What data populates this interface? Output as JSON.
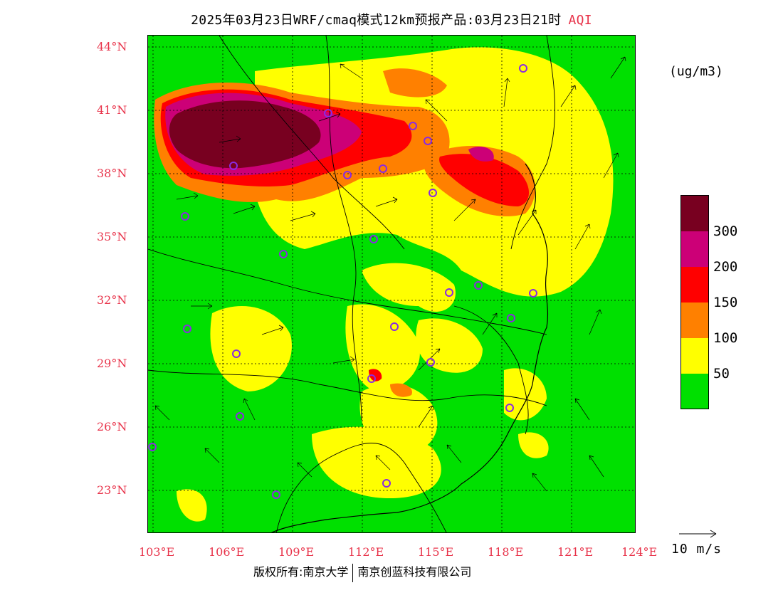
{
  "title": {
    "main": "2025年03月23日WRF/cmaq模式12km预报产品:03月23日21时",
    "variable": "AQI"
  },
  "map": {
    "lat_labels": [
      "44°N",
      "41°N",
      "38°N",
      "35°N",
      "32°N",
      "29°N",
      "26°N",
      "23°N"
    ],
    "lon_labels": [
      "103°E",
      "106°E",
      "109°E",
      "112°E",
      "115°E",
      "118°E",
      "121°E",
      "124°E"
    ],
    "colors": {
      "good": "#00e000",
      "moderate": "#ffff00",
      "usg": "#ff8000",
      "unhealthy": "#ff0000",
      "very_unhealthy": "#cc0077",
      "hazardous": "#780020",
      "station_marker": "#8a2be2",
      "label_red": "#e8334a"
    },
    "stations_count_note": "purple station circles"
  },
  "legend": {
    "unit": "(ug/m3)",
    "labels": [
      "300",
      "200",
      "150",
      "100",
      "50"
    ],
    "colors": [
      "#780020",
      "#cc0077",
      "#ff0000",
      "#ff8000",
      "#ffff00",
      "#00e000"
    ]
  },
  "wind_reference": {
    "label": "10 m/s"
  },
  "footer": {
    "left": "版权所有:南京大学",
    "right": "南京创蓝科技有限公司"
  }
}
